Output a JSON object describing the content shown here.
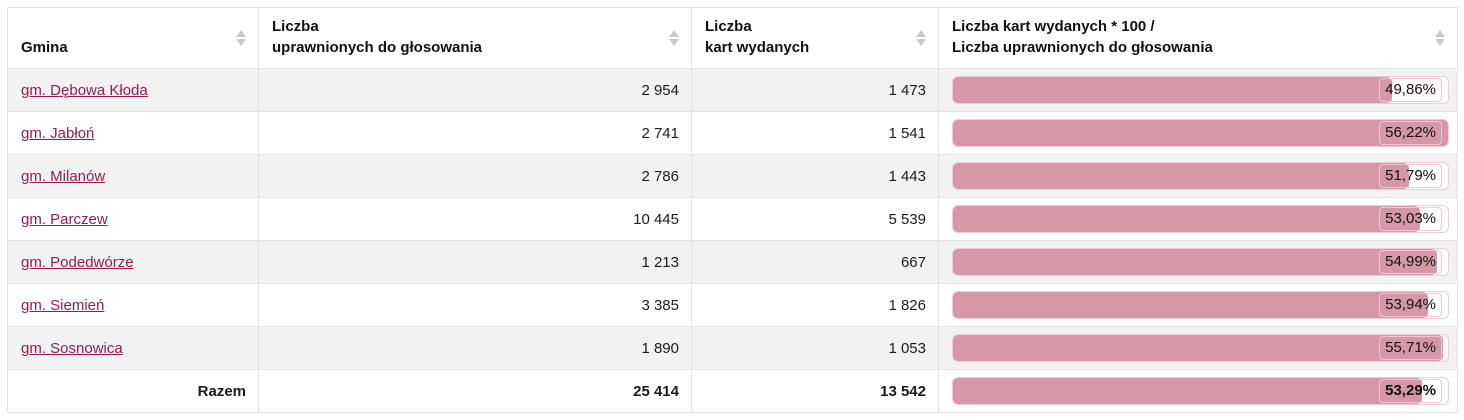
{
  "table": {
    "headers": [
      {
        "lines": [
          "Gmina"
        ]
      },
      {
        "lines": [
          "Liczba",
          "uprawnionych do głosowania"
        ]
      },
      {
        "lines": [
          "Liczba",
          "kart wydanych"
        ]
      },
      {
        "lines": [
          "Liczba kart wydanych * 100 /",
          "Liczba uprawnionych do głosowania"
        ]
      }
    ],
    "rows": [
      {
        "gmina": "gm. Dębowa Kłoda",
        "eligible": "2 954",
        "cards": "1 473",
        "pct": 49.86,
        "pct_label": "49,86%"
      },
      {
        "gmina": "gm. Jabłoń",
        "eligible": "2 741",
        "cards": "1 541",
        "pct": 56.22,
        "pct_label": "56,22%"
      },
      {
        "gmina": "gm. Milanów",
        "eligible": "2 786",
        "cards": "1 443",
        "pct": 51.79,
        "pct_label": "51,79%"
      },
      {
        "gmina": "gm. Parczew",
        "eligible": "10 445",
        "cards": "5 539",
        "pct": 53.03,
        "pct_label": "53,03%"
      },
      {
        "gmina": "gm. Podedwórze",
        "eligible": "1 213",
        "cards": "667",
        "pct": 54.99,
        "pct_label": "54,99%"
      },
      {
        "gmina": "gm. Siemień",
        "eligible": "3 385",
        "cards": "1 826",
        "pct": 53.94,
        "pct_label": "53,94%"
      },
      {
        "gmina": "gm. Sosnowica",
        "eligible": "1 890",
        "cards": "1 053",
        "pct": 55.71,
        "pct_label": "55,71%"
      }
    ],
    "total": {
      "label": "Razem",
      "eligible": "25 414",
      "cards": "13 542",
      "pct": 53.29,
      "pct_label": "53,29%"
    },
    "max_pct": 56.22
  },
  "colors": {
    "link": "#951c50",
    "bar_fill": "#d697a7",
    "bar_track_border": "#f1ccd7",
    "bar_label_border": "#eec7d2",
    "row_alt": "#f2f2f2",
    "grid_border": "#e3e3e3",
    "sort_icon": "#c9c9c9",
    "text": "#1b1b1b"
  }
}
